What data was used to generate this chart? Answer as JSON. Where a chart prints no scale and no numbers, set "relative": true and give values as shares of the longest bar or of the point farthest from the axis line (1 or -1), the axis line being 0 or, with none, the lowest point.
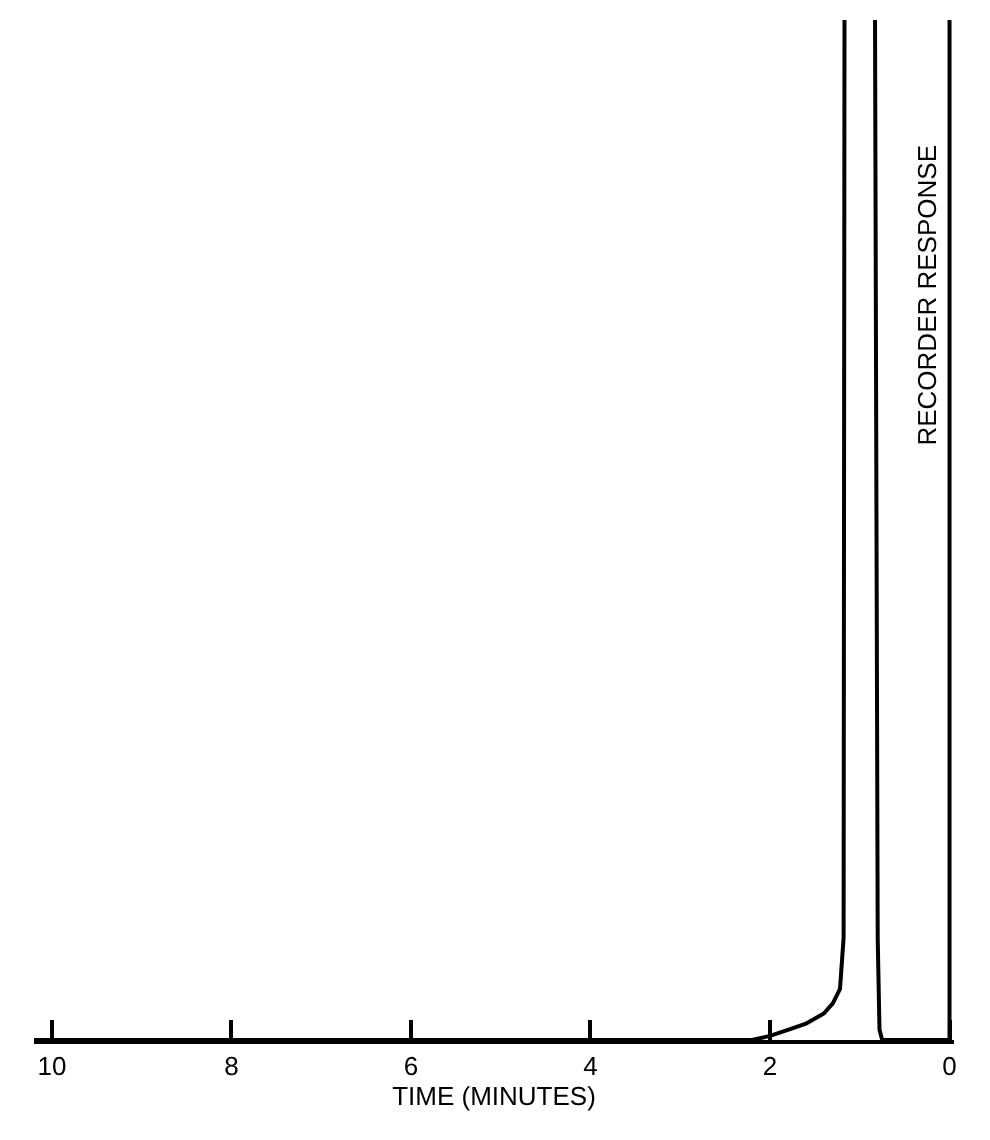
{
  "chart_data": {
    "type": "line",
    "relative": true,
    "xlabel": "TIME (MINUTES)",
    "ylabel": "RECORDER RESPONSE",
    "xlim": [
      10.2,
      -0.05
    ],
    "xticks": [
      10,
      8,
      6,
      4,
      2,
      0
    ],
    "marker": "none",
    "line_style": "solid",
    "series": [
      {
        "color": "#000000",
        "x": [
          10.2,
          2.2,
          2.0,
          1.8,
          1.6,
          1.4,
          1.3,
          1.22,
          1.18,
          1.17,
          1.0,
          0.83,
          0.8,
          0.78,
          0.75,
          0
        ],
        "values": [
          0,
          0,
          0.004,
          0.01,
          0.016,
          0.026,
          0.036,
          0.05,
          0.1,
          1,
          null,
          1,
          0.1,
          0.01,
          0,
          0
        ]
      }
    ]
  }
}
